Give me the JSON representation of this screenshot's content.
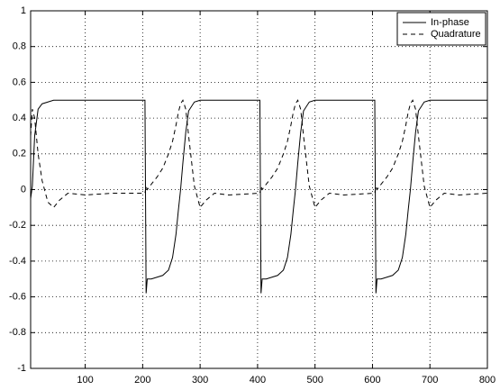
{
  "chart_data": {
    "type": "line",
    "x": [
      5,
      8,
      12,
      18,
      25,
      35,
      45,
      55,
      70,
      100,
      150,
      204,
      206,
      208,
      215,
      225,
      235,
      245,
      252,
      258,
      262,
      266,
      270,
      275,
      280,
      290,
      300,
      310,
      325,
      350,
      404,
      406,
      408,
      415,
      425,
      435,
      445,
      452,
      458,
      462,
      466,
      470,
      475,
      480,
      490,
      500,
      510,
      525,
      550,
      604,
      606,
      608,
      615,
      625,
      635,
      645,
      652,
      658,
      662,
      666,
      670,
      675,
      680,
      690,
      700,
      710,
      725,
      750,
      800
    ],
    "series": [
      {
        "name": "In-phase",
        "color": "#000000",
        "dash": "solid",
        "values": [
          -0.05,
          0.02,
          0.3,
          0.45,
          0.48,
          0.49,
          0.5,
          0.5,
          0.5,
          0.5,
          0.5,
          0.5,
          -0.58,
          -0.5,
          -0.5,
          -0.49,
          -0.48,
          -0.45,
          -0.38,
          -0.25,
          -0.12,
          0,
          0.15,
          0.32,
          0.44,
          0.49,
          0.5,
          0.5,
          0.5,
          0.5,
          0.5,
          -0.58,
          -0.5,
          -0.5,
          -0.49,
          -0.48,
          -0.45,
          -0.38,
          -0.25,
          -0.12,
          0,
          0.15,
          0.32,
          0.44,
          0.49,
          0.5,
          0.5,
          0.5,
          0.5,
          0.5,
          -0.58,
          -0.5,
          -0.5,
          -0.49,
          -0.48,
          -0.45,
          -0.38,
          -0.25,
          -0.12,
          0,
          0.15,
          0.32,
          0.44,
          0.49,
          0.5,
          0.5,
          0.5,
          0.5,
          0.5
        ]
      },
      {
        "name": "Quadrature",
        "color": "#000000",
        "dash": "dashed",
        "values": [
          0.3,
          0.45,
          0.4,
          0.2,
          0.05,
          -0.07,
          -0.1,
          -0.06,
          -0.02,
          -0.03,
          -0.02,
          -0.02,
          0.02,
          0,
          0.03,
          0.07,
          0.12,
          0.2,
          0.27,
          0.36,
          0.43,
          0.48,
          0.5,
          0.45,
          0.3,
          0.02,
          -0.1,
          -0.06,
          -0.02,
          -0.03,
          -0.02,
          0.02,
          0,
          0.03,
          0.07,
          0.12,
          0.2,
          0.27,
          0.36,
          0.43,
          0.48,
          0.5,
          0.45,
          0.3,
          0.02,
          -0.1,
          -0.06,
          -0.02,
          -0.03,
          -0.02,
          0.02,
          0,
          0.03,
          0.07,
          0.12,
          0.2,
          0.27,
          0.36,
          0.43,
          0.48,
          0.5,
          0.45,
          0.3,
          0.02,
          -0.1,
          -0.06,
          -0.02,
          -0.03,
          -0.02
        ]
      }
    ],
    "xlim": [
      5,
      800
    ],
    "xticks": [
      100,
      200,
      300,
      400,
      500,
      600,
      700,
      800
    ],
    "ylim": [
      -1,
      1
    ],
    "yticks": [
      -1,
      -0.8,
      -0.6,
      -0.4,
      -0.2,
      0,
      0.2,
      0.4,
      0.6,
      0.8,
      1
    ],
    "grid": true,
    "legend": "upper-right"
  }
}
